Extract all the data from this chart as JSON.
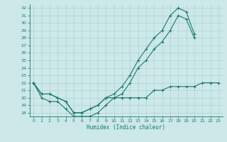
{
  "xlabel": "Humidex (Indice chaleur)",
  "bg_color": "#cce8e8",
  "line_color": "#1a7a6e",
  "grid_color": "#aacccc",
  "ylim": [
    17.5,
    32.5
  ],
  "xlim": [
    -0.5,
    23.5
  ],
  "yticks": [
    18,
    19,
    20,
    21,
    22,
    23,
    24,
    25,
    26,
    27,
    28,
    29,
    30,
    31,
    32
  ],
  "xticks": [
    0,
    1,
    2,
    3,
    4,
    5,
    6,
    7,
    8,
    9,
    10,
    11,
    12,
    13,
    14,
    15,
    16,
    17,
    18,
    19,
    20,
    21,
    22,
    23
  ],
  "line_top_x": [
    0,
    1,
    2,
    3,
    4,
    5,
    6,
    7,
    8,
    9,
    10,
    11,
    12,
    13,
    14,
    15,
    16,
    17,
    18,
    19,
    20
  ],
  "line_top_y": [
    22,
    20.5,
    20.5,
    20,
    19.5,
    18,
    18,
    18.5,
    19,
    20,
    20.5,
    21.5,
    23,
    25,
    26.5,
    28,
    29,
    31,
    32,
    31.5,
    28.5
  ],
  "line_mid_x": [
    0,
    1,
    2,
    3,
    4,
    5,
    6,
    7,
    8,
    9,
    10,
    11,
    12,
    13,
    14,
    15,
    16,
    17,
    18,
    19,
    20
  ],
  "line_mid_y": [
    22,
    20.5,
    20.5,
    20,
    19.5,
    18,
    18,
    18.5,
    19,
    20,
    20,
    20.5,
    22,
    24,
    25,
    26.5,
    27.5,
    29,
    31,
    30.5,
    28
  ],
  "line_bot_x": [
    0,
    1,
    2,
    3,
    4,
    5,
    6,
    7,
    8,
    9,
    10,
    11,
    12,
    13,
    14,
    15,
    16,
    17,
    18,
    19,
    20,
    21,
    22,
    23
  ],
  "line_bot_y": [
    22,
    20,
    19.5,
    19.5,
    18.5,
    17.5,
    17.5,
    17.5,
    18,
    19,
    20,
    20,
    20,
    20,
    20,
    21,
    21,
    21.5,
    21.5,
    21.5,
    21.5,
    22,
    22,
    22
  ]
}
